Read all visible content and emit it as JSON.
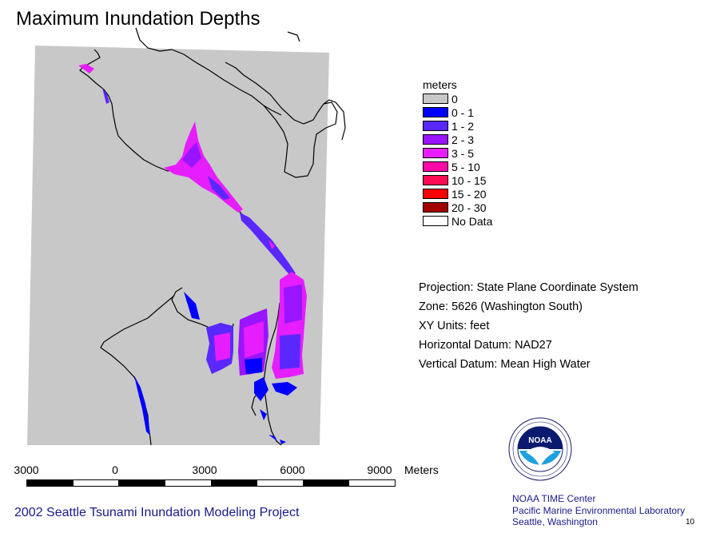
{
  "title": "Maximum Inundation Depths",
  "legend": {
    "title": "meters",
    "items": [
      {
        "label": "0",
        "color": "#c8c8c8"
      },
      {
        "label": "0 - 1",
        "color": "#0000ff"
      },
      {
        "label": "1 - 2",
        "color": "#5a28ff"
      },
      {
        "label": "2 - 3",
        "color": "#9a14ff"
      },
      {
        "label": "3 - 5",
        "color": "#e61eff"
      },
      {
        "label": "5 - 10",
        "color": "#ff0aa8"
      },
      {
        "label": "10 - 15",
        "color": "#ff0a55"
      },
      {
        "label": "15 - 20",
        "color": "#ff0000"
      },
      {
        "label": "20 - 30",
        "color": "#a00000"
      },
      {
        "label": "No Data",
        "color": "#ffffff"
      }
    ]
  },
  "metadata": [
    "Projection: State Plane Coordinate System",
    "Zone: 5626 (Washington South)",
    "XY Units: feet",
    "Horizontal Datum: NAD27",
    "Vertical Datum: Mean High Water"
  ],
  "scale": {
    "ticks": [
      "3000",
      "0",
      "3000",
      "6000",
      "9000"
    ],
    "unit": "Meters"
  },
  "project": "2002 Seattle Tsunami Inundation Modeling Project",
  "logo": {
    "text": "NOAA",
    "ring_text": "NATIONAL OCEANIC AND ATMOSPHERIC ADMINISTRATION · U.S. DEPARTMENT OF COMMERCE"
  },
  "credits": [
    "NOAA TIME Center",
    "Pacific Marine Environmental Laboratory",
    "Seattle, Washington"
  ],
  "page_number": "10",
  "colors": {
    "model_domain": "#c8c8c8",
    "coastline": "#000000",
    "credit_text": "#1a1a8a"
  }
}
